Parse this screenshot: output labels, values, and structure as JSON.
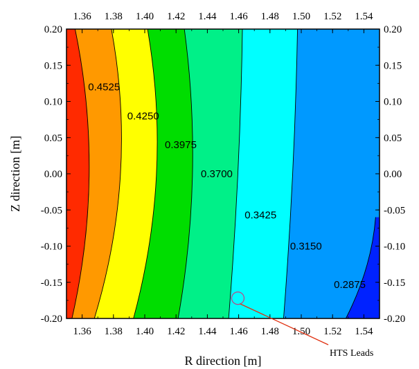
{
  "chart_data": {
    "type": "heatmap",
    "subtype": "filled-contour",
    "xlabel": "R direction [m]",
    "ylabel": "Z direction [m]",
    "xlim": [
      1.35,
      1.55
    ],
    "ylim": [
      -0.2,
      0.2
    ],
    "x_ticks": [
      "1.36",
      "1.38",
      "1.40",
      "1.42",
      "1.44",
      "1.46",
      "1.48",
      "1.50",
      "1.52",
      "1.54"
    ],
    "x_tick_values": [
      1.36,
      1.38,
      1.4,
      1.42,
      1.44,
      1.46,
      1.48,
      1.5,
      1.52,
      1.54
    ],
    "y_ticks": [
      "0.20",
      "0.15",
      "0.10",
      "0.05",
      "0.00",
      "-0.05",
      "-0.10",
      "-0.15",
      "-0.20"
    ],
    "y_tick_values": [
      0.2,
      0.15,
      0.1,
      0.05,
      0.0,
      -0.05,
      -0.1,
      -0.15,
      -0.2
    ],
    "colors": [
      "#ff2a00",
      "#ff9900",
      "#ffff00",
      "#00dd00",
      "#00f088",
      "#00ffff",
      "#0099ff",
      "#0022ff"
    ],
    "levels": [
      {
        "label": "0.4525",
        "x": 1.374,
        "y": 0.12
      },
      {
        "label": "0.4250",
        "x": 1.399,
        "y": 0.08
      },
      {
        "label": "0.3975",
        "x": 1.423,
        "y": 0.04
      },
      {
        "label": "0.3700",
        "x": 1.446,
        "y": 0.0
      },
      {
        "label": "0.3425",
        "x": 1.474,
        "y": -0.057
      },
      {
        "label": "0.3150",
        "x": 1.503,
        "y": -0.1
      },
      {
        "label": "0.2875",
        "x": 1.531,
        "y": -0.153
      }
    ],
    "contours": [
      {
        "top_x": 1.3555,
        "mid_x": 1.3645,
        "bottom_x": 1.3535,
        "min_y": -0.2
      },
      {
        "top_x": 1.3787,
        "mid_x": 1.3845,
        "bottom_x": 1.3678,
        "min_y": -0.2
      },
      {
        "top_x": 1.4018,
        "mid_x": 1.4075,
        "bottom_x": 1.3928,
        "min_y": -0.2
      },
      {
        "top_x": 1.4253,
        "mid_x": 1.4305,
        "bottom_x": 1.4213,
        "min_y": -0.2
      },
      {
        "top_x": 1.4624,
        "mid_x": 1.4595,
        "bottom_x": 1.4536,
        "min_y": -0.2
      },
      {
        "top_x": 1.4976,
        "mid_x": 1.4945,
        "bottom_x": 1.4887,
        "min_y": -0.2
      },
      {
        "top_x": 1.5475,
        "mid_x": 1.5415,
        "bottom_x": 1.5285,
        "min_y": -0.2,
        "start_y": -0.06
      }
    ],
    "annotation": {
      "text": "HTS Leads",
      "x": 1.4595,
      "y": -0.172
    }
  }
}
